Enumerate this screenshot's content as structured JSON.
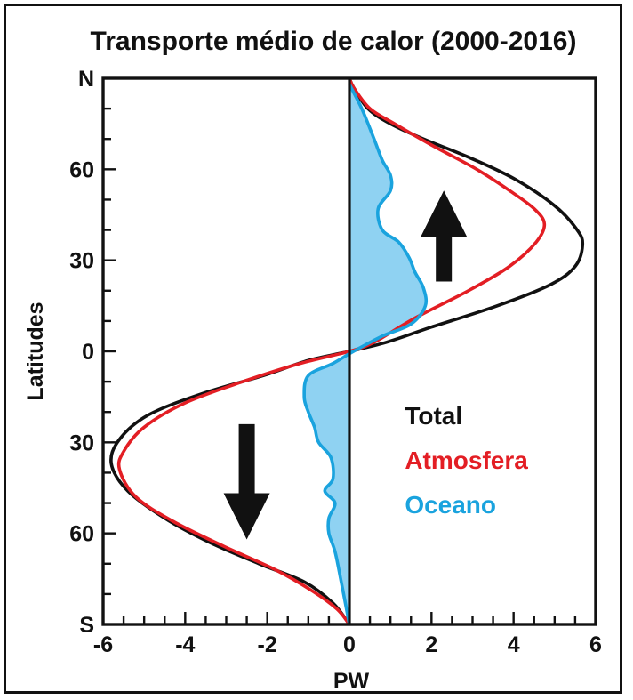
{
  "chart_data": {
    "type": "line",
    "title": "Transporte médio de calor (2000-2016)",
    "xlabel": "PW",
    "ylabel": "Latitudes",
    "xlim": [
      -6,
      6
    ],
    "ylim": [
      -90,
      90
    ],
    "x_ticks": [
      {
        "value": -6,
        "label": "-6"
      },
      {
        "value": -4,
        "label": "-4"
      },
      {
        "value": -2,
        "label": "-2"
      },
      {
        "value": 0,
        "label": "0"
      },
      {
        "value": 2,
        "label": "2"
      },
      {
        "value": 4,
        "label": "4"
      },
      {
        "value": 6,
        "label": "6"
      }
    ],
    "y_ticks": [
      {
        "value": 90,
        "label": "N"
      },
      {
        "value": 60,
        "label": "60"
      },
      {
        "value": 30,
        "label": "30"
      },
      {
        "value": 0,
        "label": "0"
      },
      {
        "value": -30,
        "label": "30"
      },
      {
        "value": -60,
        "label": "60"
      },
      {
        "value": -90,
        "label": "S"
      }
    ],
    "legend_position": "right",
    "series": [
      {
        "name": "Total",
        "color": "#111111",
        "points": [
          [
            0,
            90
          ],
          [
            0.1,
            87
          ],
          [
            0.45,
            80
          ],
          [
            1.0,
            75
          ],
          [
            1.8,
            70
          ],
          [
            2.9,
            64
          ],
          [
            4.0,
            57
          ],
          [
            5.0,
            48
          ],
          [
            5.55,
            40
          ],
          [
            5.68,
            35
          ],
          [
            5.5,
            28
          ],
          [
            4.9,
            22
          ],
          [
            3.6,
            15
          ],
          [
            2.0,
            8
          ],
          [
            0.9,
            3
          ],
          [
            0,
            0
          ],
          [
            -1.0,
            -3
          ],
          [
            -2.1,
            -8
          ],
          [
            -3.6,
            -14
          ],
          [
            -4.9,
            -21
          ],
          [
            -5.6,
            -29
          ],
          [
            -5.8,
            -37
          ],
          [
            -5.4,
            -46
          ],
          [
            -4.5,
            -55
          ],
          [
            -3.4,
            -63
          ],
          [
            -2.2,
            -70
          ],
          [
            -1.1,
            -76
          ],
          [
            -0.4,
            -83
          ],
          [
            0,
            -90
          ]
        ]
      },
      {
        "name": "Atmosfera",
        "color": "#e31e24",
        "points": [
          [
            0,
            90
          ],
          [
            0.1,
            87
          ],
          [
            0.5,
            80
          ],
          [
            1.1,
            75
          ],
          [
            2.0,
            68
          ],
          [
            3.1,
            60
          ],
          [
            3.9,
            53
          ],
          [
            4.5,
            47
          ],
          [
            4.75,
            42
          ],
          [
            4.55,
            36
          ],
          [
            3.9,
            28
          ],
          [
            2.9,
            20
          ],
          [
            1.6,
            11
          ],
          [
            0.6,
            3
          ],
          [
            0,
            0
          ],
          [
            -1.2,
            -4
          ],
          [
            -2.6,
            -10
          ],
          [
            -4.0,
            -17
          ],
          [
            -5.0,
            -25
          ],
          [
            -5.5,
            -33
          ],
          [
            -5.6,
            -39
          ],
          [
            -5.2,
            -48
          ],
          [
            -4.3,
            -56
          ],
          [
            -3.1,
            -64
          ],
          [
            -1.8,
            -72
          ],
          [
            -0.9,
            -79
          ],
          [
            -0.3,
            -85
          ],
          [
            0,
            -90
          ]
        ]
      },
      {
        "name": "Oceano",
        "color": "#1aa3de",
        "fill": "#8fd2f2",
        "points": [
          [
            0,
            88
          ],
          [
            0.3,
            80
          ],
          [
            0.6,
            70
          ],
          [
            0.8,
            63
          ],
          [
            1.0,
            58
          ],
          [
            1.0,
            53
          ],
          [
            0.7,
            47
          ],
          [
            0.8,
            40
          ],
          [
            1.2,
            36
          ],
          [
            1.45,
            31
          ],
          [
            1.6,
            26
          ],
          [
            1.8,
            21
          ],
          [
            1.85,
            15
          ],
          [
            1.5,
            9
          ],
          [
            0.8,
            5
          ],
          [
            0.1,
            0
          ],
          [
            -0.4,
            -4
          ],
          [
            -1.0,
            -8
          ],
          [
            -1.1,
            -15
          ],
          [
            -1.0,
            -20
          ],
          [
            -0.85,
            -25
          ],
          [
            -0.75,
            -30
          ],
          [
            -0.45,
            -35
          ],
          [
            -0.4,
            -42
          ],
          [
            -0.6,
            -46
          ],
          [
            -0.35,
            -50
          ],
          [
            -0.5,
            -55
          ],
          [
            -0.5,
            -60
          ],
          [
            -0.35,
            -66
          ],
          [
            -0.2,
            -76
          ],
          [
            0,
            -90
          ]
        ]
      }
    ],
    "annotations": [
      {
        "type": "arrow",
        "direction": "up",
        "hemisphere": "north",
        "color": "#111111"
      },
      {
        "type": "arrow",
        "direction": "down",
        "hemisphere": "south",
        "color": "#111111"
      }
    ]
  }
}
